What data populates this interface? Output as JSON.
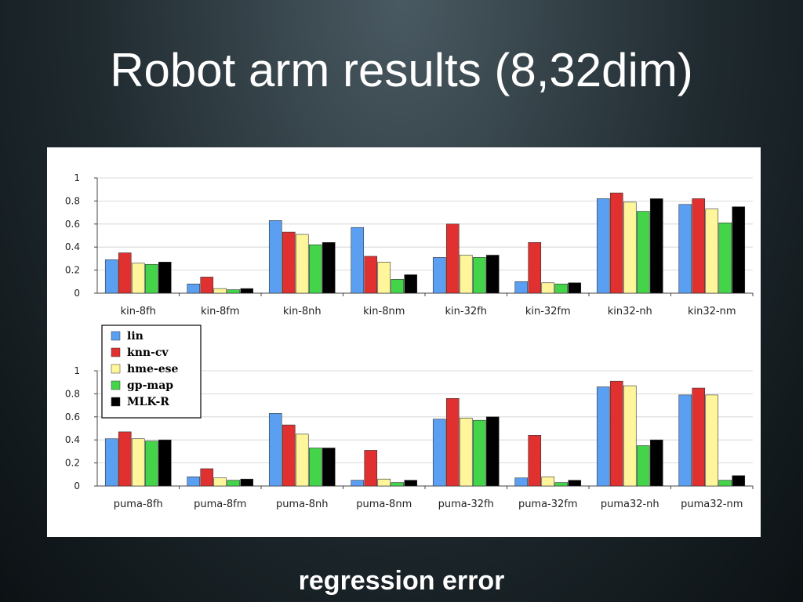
{
  "slide": {
    "title": "Robot arm results (8,32dim)",
    "footer": "regression error"
  },
  "chart_data": [
    {
      "type": "bar",
      "categories": [
        "kin-8fh",
        "kin-8fm",
        "kin-8nh",
        "kin-8nm",
        "kin-32fh",
        "kin-32fm",
        "kin32-nh",
        "kin32-nm"
      ],
      "ylim": [
        0,
        1
      ],
      "yticks": [
        "0",
        "0.2",
        "0.4",
        "0.6",
        "0.8",
        "1"
      ],
      "grid": true,
      "series": [
        {
          "name": "lin",
          "color": "#5b9ff2",
          "values": [
            0.29,
            0.08,
            0.63,
            0.57,
            0.31,
            0.1,
            0.82,
            0.77
          ]
        },
        {
          "name": "knn-cv",
          "color": "#e03030",
          "values": [
            0.35,
            0.14,
            0.53,
            0.32,
            0.6,
            0.44,
            0.87,
            0.82
          ]
        },
        {
          "name": "hme-ese",
          "color": "#fff59a",
          "values": [
            0.26,
            0.04,
            0.51,
            0.27,
            0.33,
            0.09,
            0.79,
            0.73
          ]
        },
        {
          "name": "gp-map",
          "color": "#44d44a",
          "values": [
            0.25,
            0.03,
            0.42,
            0.12,
            0.31,
            0.08,
            0.71,
            0.61
          ]
        },
        {
          "name": "MLK-R",
          "color": "#000000",
          "values": [
            0.27,
            0.04,
            0.44,
            0.16,
            0.33,
            0.09,
            0.82,
            0.75
          ]
        }
      ]
    },
    {
      "type": "bar",
      "categories": [
        "puma-8fh",
        "puma-8fm",
        "puma-8nh",
        "puma-8nm",
        "puma-32fh",
        "puma-32fm",
        "puma32-nh",
        "puma32-nm"
      ],
      "ylim": [
        0,
        1
      ],
      "yticks": [
        "0",
        "0.2",
        "0.4",
        "0.6",
        "0.8",
        "1"
      ],
      "grid": true,
      "legend": "top-left",
      "series": [
        {
          "name": "lin",
          "color": "#5b9ff2",
          "values": [
            0.41,
            0.08,
            0.63,
            0.05,
            0.58,
            0.07,
            0.86,
            0.79
          ]
        },
        {
          "name": "knn-cv",
          "color": "#e03030",
          "values": [
            0.47,
            0.15,
            0.53,
            0.31,
            0.76,
            0.44,
            0.91,
            0.85
          ]
        },
        {
          "name": "hme-ese",
          "color": "#fff59a",
          "values": [
            0.41,
            0.07,
            0.45,
            0.06,
            0.59,
            0.08,
            0.87,
            0.79
          ]
        },
        {
          "name": "gp-map",
          "color": "#44d44a",
          "values": [
            0.39,
            0.05,
            0.33,
            0.03,
            0.57,
            0.03,
            0.35,
            0.05
          ]
        },
        {
          "name": "MLK-R",
          "color": "#000000",
          "values": [
            0.4,
            0.06,
            0.33,
            0.05,
            0.6,
            0.05,
            0.4,
            0.09
          ]
        }
      ]
    }
  ]
}
